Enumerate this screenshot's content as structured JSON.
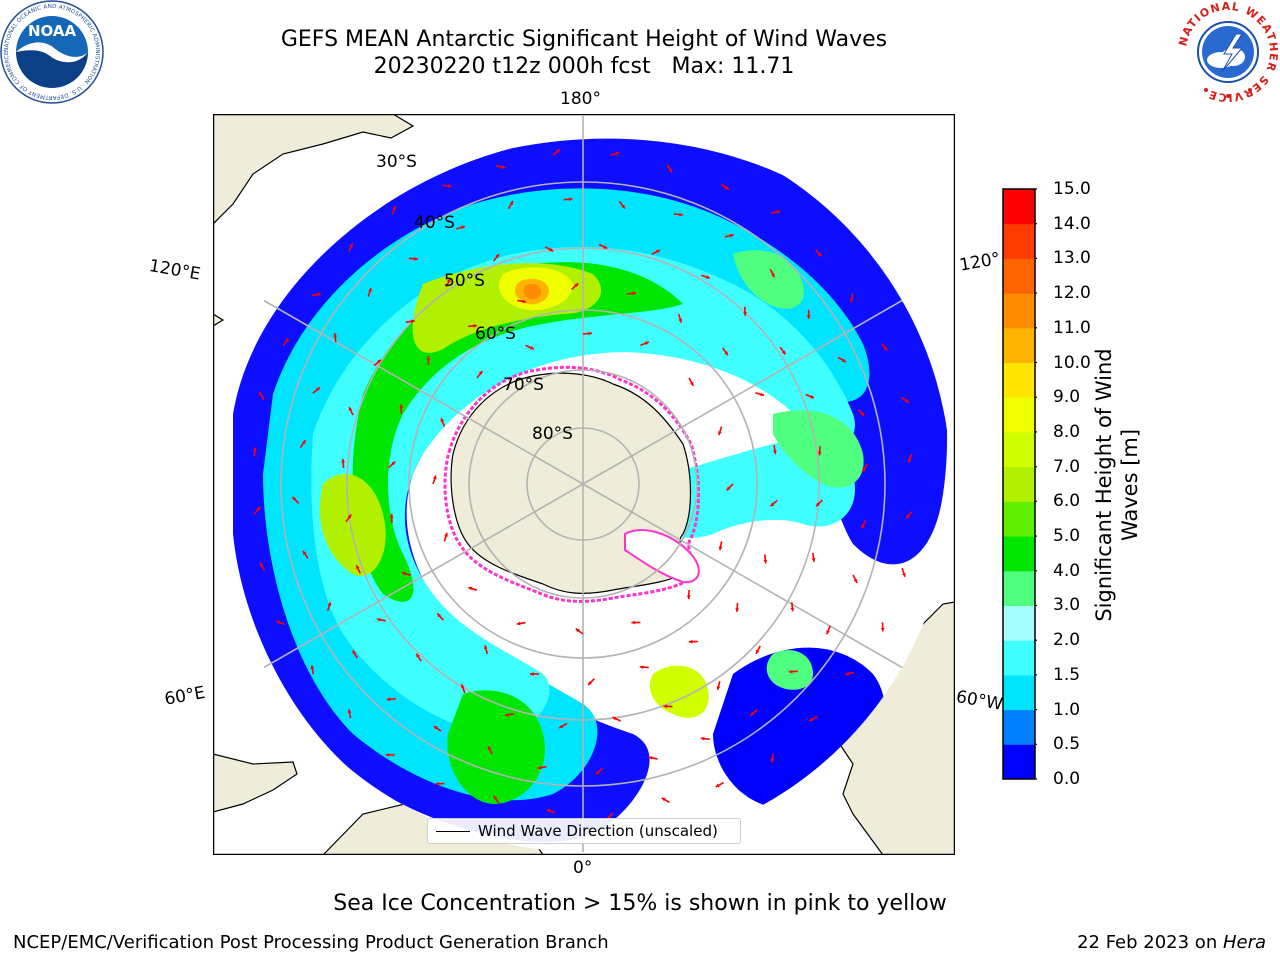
{
  "header": {
    "title_line1": "GEFS MEAN Antarctic Significant Height of Wind Waves",
    "title_line2": "20230220 t12z 000h fcst   Max: 11.71"
  },
  "map": {
    "projection": "south-polar-stereographic",
    "longitude_labels": [
      "180°",
      "120°E",
      "120°",
      "60°E",
      "60°W",
      "0°"
    ],
    "latitude_labels": [
      "30°S",
      "40°S",
      "50°S",
      "60°S",
      "70°S",
      "80°S"
    ],
    "legend_label": "Wind Wave Direction (unscaled)",
    "sea_ice_color": "#ff33cc",
    "land_color": "#efecda"
  },
  "colorbar": {
    "label_line1": "Significant Height of Wind",
    "label_line2": "Waves [m]",
    "ticks": [
      "0.0",
      "0.5",
      "1.0",
      "1.5",
      "2.0",
      "3.0",
      "4.0",
      "5.0",
      "6.0",
      "7.0",
      "8.0",
      "9.0",
      "10.0",
      "11.0",
      "12.0",
      "13.0",
      "14.0",
      "15.0"
    ],
    "colors": [
      "#0000ff",
      "#0080ff",
      "#00e5ff",
      "#40ffff",
      "#a6ffff",
      "#50ff80",
      "#00e600",
      "#60f000",
      "#b0f000",
      "#d0ff00",
      "#f0ff00",
      "#ffe600",
      "#ffb400",
      "#ff8c00",
      "#ff6400",
      "#ff3c00",
      "#ff0000"
    ]
  },
  "logos": {
    "left_text": "NOAA",
    "left_ring": "NATIONAL OCEANIC AND ATMOSPHERIC ADMINISTRATION · U.S. DEPARTMENT OF COMMERCE",
    "right_ring": "NATIONAL WEATHER SERVICE"
  },
  "notes": {
    "sea_ice": "Sea Ice Concentration > 15% is shown in pink to yellow"
  },
  "footer": {
    "left": "NCEP/EMC/Verification Post Processing Product Generation Branch",
    "right_prefix": "22 Feb 2023 on ",
    "right_host": "Hera"
  }
}
